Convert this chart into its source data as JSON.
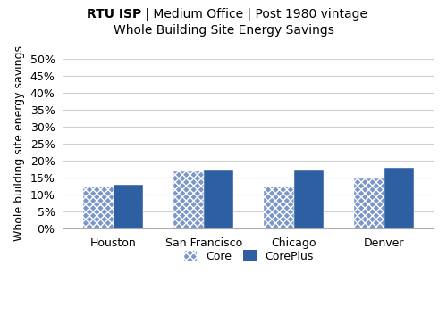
{
  "title_bold_part": "RTU ISP",
  "title_line1_rest": " | Medium Office | Post 1980 vintage",
  "title_line2": "Whole Building Site Energy Savings",
  "categories": [
    "Houston",
    "San Francisco",
    "Chicago",
    "Denver"
  ],
  "core_values": [
    0.123,
    0.168,
    0.123,
    0.147
  ],
  "coreplus_values": [
    0.13,
    0.17,
    0.172,
    0.18
  ],
  "ylabel": "Whole building site energy savings",
  "ylim": [
    0,
    0.5
  ],
  "yticks": [
    0.0,
    0.05,
    0.1,
    0.15,
    0.2,
    0.25,
    0.3,
    0.35,
    0.4,
    0.45,
    0.5
  ],
  "ytick_labels": [
    "0%",
    "5%",
    "10%",
    "15%",
    "20%",
    "25%",
    "30%",
    "35%",
    "40%",
    "45%",
    "50%"
  ],
  "core_color": "#7B96C8",
  "coreplus_color": "#2E5FA3",
  "bar_width": 0.33,
  "legend_labels": [
    "Core",
    "CorePlus"
  ],
  "background_color": "#ffffff",
  "grid_color": "#d0d0d0",
  "font_size": 9,
  "title_font_size": 10
}
